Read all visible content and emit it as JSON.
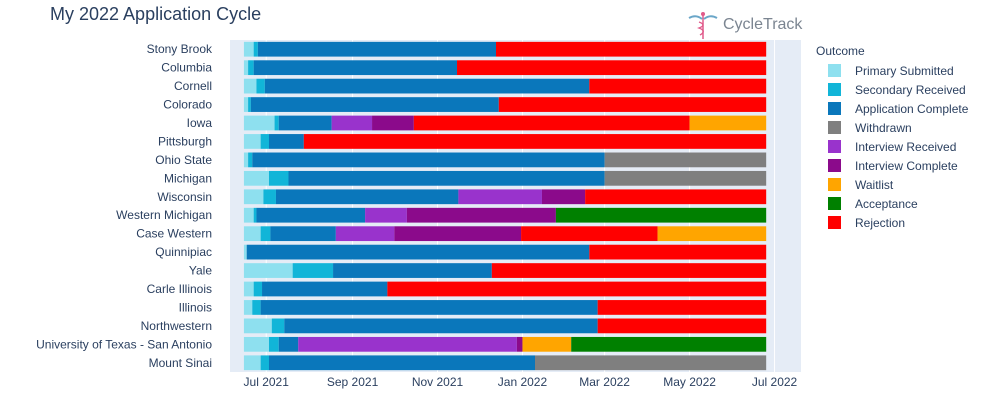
{
  "title": "My 2022 Application Cycle",
  "logo_text": "CycleTrack",
  "colors": {
    "Primary Submitted": "#8ee0ef",
    "Secondary Received": "#11b5d8",
    "Application Complete": "#0a77bb",
    "Withdrawn": "#7f7f7f",
    "Interview Received": "#9933cc",
    "Interview Complete": "#8b0a8b",
    "Waitlist": "#ffa500",
    "Acceptance": "#008000",
    "Rejection": "#ff0000"
  },
  "chart_data": {
    "type": "bar",
    "orientation": "horizontal-timeline",
    "xlim": [
      "2021-06-05",
      "2022-07-20"
    ],
    "x_ticks": [
      {
        "date": "2021-07-01",
        "label": "Jul 2021"
      },
      {
        "date": "2021-09-01",
        "label": "Sep 2021"
      },
      {
        "date": "2021-11-01",
        "label": "Nov 2021"
      },
      {
        "date": "2022-01-01",
        "label": "Jan 2022"
      },
      {
        "date": "2022-03-01",
        "label": "Mar 2022"
      },
      {
        "date": "2022-05-01",
        "label": "May 2022"
      },
      {
        "date": "2022-07-01",
        "label": "Jul 2022"
      }
    ],
    "grid": true,
    "legend_position": "right",
    "legend_title": "Outcome",
    "legend": [
      "Primary Submitted",
      "Secondary Received",
      "Application Complete",
      "Withdrawn",
      "Interview Received",
      "Interview Complete",
      "Waitlist",
      "Acceptance",
      "Rejection"
    ],
    "schools": [
      {
        "name": "Stony Brook",
        "segments": [
          [
            "Primary Submitted",
            "2021-06-15",
            "2021-06-22"
          ],
          [
            "Secondary Received",
            "2021-06-22",
            "2021-06-25"
          ],
          [
            "Application Complete",
            "2021-06-25",
            "2021-12-13"
          ],
          [
            "Rejection",
            "2021-12-13",
            "2022-06-25"
          ]
        ]
      },
      {
        "name": "Columbia",
        "segments": [
          [
            "Primary Submitted",
            "2021-06-15",
            "2021-06-18"
          ],
          [
            "Secondary Received",
            "2021-06-18",
            "2021-06-22"
          ],
          [
            "Application Complete",
            "2021-06-22",
            "2021-11-15"
          ],
          [
            "Rejection",
            "2021-11-15",
            "2022-06-25"
          ]
        ]
      },
      {
        "name": "Cornell",
        "segments": [
          [
            "Primary Submitted",
            "2021-06-15",
            "2021-06-24"
          ],
          [
            "Secondary Received",
            "2021-06-24",
            "2021-06-30"
          ],
          [
            "Application Complete",
            "2021-06-30",
            "2022-02-18"
          ],
          [
            "Rejection",
            "2022-02-18",
            "2022-06-25"
          ]
        ]
      },
      {
        "name": "Colorado",
        "segments": [
          [
            "Primary Submitted",
            "2021-06-15",
            "2021-06-18"
          ],
          [
            "Secondary Received",
            "2021-06-18",
            "2021-06-20"
          ],
          [
            "Application Complete",
            "2021-06-20",
            "2021-12-15"
          ],
          [
            "Rejection",
            "2021-12-15",
            "2022-06-25"
          ]
        ]
      },
      {
        "name": "Iowa",
        "segments": [
          [
            "Primary Submitted",
            "2021-06-15",
            "2021-07-07"
          ],
          [
            "Secondary Received",
            "2021-07-07",
            "2021-07-10"
          ],
          [
            "Application Complete",
            "2021-07-10",
            "2021-08-17"
          ],
          [
            "Interview Received",
            "2021-08-17",
            "2021-09-15"
          ],
          [
            "Interview Complete",
            "2021-09-15",
            "2021-10-15"
          ],
          [
            "Rejection",
            "2021-10-15",
            "2022-05-01"
          ],
          [
            "Waitlist",
            "2022-05-01",
            "2022-06-25"
          ]
        ]
      },
      {
        "name": "Pittsburgh",
        "segments": [
          [
            "Primary Submitted",
            "2021-06-15",
            "2021-06-27"
          ],
          [
            "Secondary Received",
            "2021-06-27",
            "2021-07-03"
          ],
          [
            "Application Complete",
            "2021-07-03",
            "2021-07-28"
          ],
          [
            "Rejection",
            "2021-07-28",
            "2022-06-25"
          ]
        ]
      },
      {
        "name": "Ohio State",
        "segments": [
          [
            "Primary Submitted",
            "2021-06-15",
            "2021-06-18"
          ],
          [
            "Secondary Received",
            "2021-06-18",
            "2021-06-21"
          ],
          [
            "Application Complete",
            "2021-06-21",
            "2022-03-01"
          ],
          [
            "Withdrawn",
            "2022-03-01",
            "2022-06-25"
          ]
        ]
      },
      {
        "name": "Michigan",
        "segments": [
          [
            "Primary Submitted",
            "2021-06-15",
            "2021-07-03"
          ],
          [
            "Secondary Received",
            "2021-07-03",
            "2021-07-17"
          ],
          [
            "Application Complete",
            "2021-07-17",
            "2022-03-01"
          ],
          [
            "Withdrawn",
            "2022-03-01",
            "2022-06-25"
          ]
        ]
      },
      {
        "name": "Wisconsin",
        "segments": [
          [
            "Primary Submitted",
            "2021-06-15",
            "2021-06-29"
          ],
          [
            "Secondary Received",
            "2021-06-29",
            "2021-07-08"
          ],
          [
            "Application Complete",
            "2021-07-08",
            "2021-11-16"
          ],
          [
            "Interview Received",
            "2021-11-16",
            "2022-01-15"
          ],
          [
            "Interview Complete",
            "2022-01-15",
            "2022-02-15"
          ],
          [
            "Rejection",
            "2022-02-15",
            "2022-06-25"
          ]
        ]
      },
      {
        "name": "Western Michigan",
        "segments": [
          [
            "Primary Submitted",
            "2021-06-15",
            "2021-06-22"
          ],
          [
            "Secondary Received",
            "2021-06-22",
            "2021-06-24"
          ],
          [
            "Application Complete",
            "2021-06-24",
            "2021-09-10"
          ],
          [
            "Interview Received",
            "2021-09-10",
            "2021-10-10"
          ],
          [
            "Interview Complete",
            "2021-10-10",
            "2022-01-25"
          ],
          [
            "Acceptance",
            "2022-01-25",
            "2022-06-25"
          ]
        ]
      },
      {
        "name": "Case Western",
        "segments": [
          [
            "Primary Submitted",
            "2021-06-15",
            "2021-06-27"
          ],
          [
            "Secondary Received",
            "2021-06-27",
            "2021-07-04"
          ],
          [
            "Application Complete",
            "2021-07-04",
            "2021-08-20"
          ],
          [
            "Interview Received",
            "2021-08-20",
            "2021-10-01"
          ],
          [
            "Interview Complete",
            "2021-10-01",
            "2021-12-31"
          ],
          [
            "Rejection",
            "2021-12-31",
            "2022-04-08"
          ],
          [
            "Waitlist",
            "2022-04-08",
            "2022-06-25"
          ]
        ]
      },
      {
        "name": "Quinnipiac",
        "segments": [
          [
            "Primary Submitted",
            "2021-06-15",
            "2021-06-17"
          ],
          [
            "Application Complete",
            "2021-06-17",
            "2022-02-18"
          ],
          [
            "Rejection",
            "2022-02-18",
            "2022-06-25"
          ]
        ]
      },
      {
        "name": "Yale",
        "segments": [
          [
            "Primary Submitted",
            "2021-06-15",
            "2021-07-20"
          ],
          [
            "Secondary Received",
            "2021-07-20",
            "2021-08-18"
          ],
          [
            "Application Complete",
            "2021-08-18",
            "2021-12-10"
          ],
          [
            "Rejection",
            "2021-12-10",
            "2022-06-25"
          ]
        ]
      },
      {
        "name": "Carle Illinois",
        "segments": [
          [
            "Primary Submitted",
            "2021-06-15",
            "2021-06-22"
          ],
          [
            "Secondary Received",
            "2021-06-22",
            "2021-06-28"
          ],
          [
            "Application Complete",
            "2021-06-28",
            "2021-09-26"
          ],
          [
            "Rejection",
            "2021-09-26",
            "2022-06-25"
          ]
        ]
      },
      {
        "name": "Illinois",
        "segments": [
          [
            "Primary Submitted",
            "2021-06-15",
            "2021-06-21"
          ],
          [
            "Secondary Received",
            "2021-06-21",
            "2021-06-27"
          ],
          [
            "Application Complete",
            "2021-06-27",
            "2022-02-24"
          ],
          [
            "Rejection",
            "2022-02-24",
            "2022-06-25"
          ]
        ]
      },
      {
        "name": "Northwestern",
        "segments": [
          [
            "Primary Submitted",
            "2021-06-15",
            "2021-07-05"
          ],
          [
            "Secondary Received",
            "2021-07-05",
            "2021-07-14"
          ],
          [
            "Application Complete",
            "2021-07-14",
            "2022-02-24"
          ],
          [
            "Rejection",
            "2022-02-24",
            "2022-06-25"
          ]
        ]
      },
      {
        "name": "University of Texas - San Antonio",
        "segments": [
          [
            "Primary Submitted",
            "2021-06-15",
            "2021-07-03"
          ],
          [
            "Secondary Received",
            "2021-07-03",
            "2021-07-10"
          ],
          [
            "Application Complete",
            "2021-07-10",
            "2021-07-24"
          ],
          [
            "Interview Received",
            "2021-07-24",
            "2021-12-28"
          ],
          [
            "Interview Complete",
            "2021-12-28",
            "2022-01-01"
          ],
          [
            "Waitlist",
            "2022-01-01",
            "2022-02-05"
          ],
          [
            "Acceptance",
            "2022-02-05",
            "2022-06-25"
          ]
        ]
      },
      {
        "name": "Mount Sinai",
        "segments": [
          [
            "Primary Submitted",
            "2021-06-15",
            "2021-06-27"
          ],
          [
            "Secondary Received",
            "2021-06-27",
            "2021-07-03"
          ],
          [
            "Application Complete",
            "2021-07-03",
            "2022-01-10"
          ],
          [
            "Withdrawn",
            "2022-01-10",
            "2022-06-25"
          ]
        ]
      }
    ]
  }
}
